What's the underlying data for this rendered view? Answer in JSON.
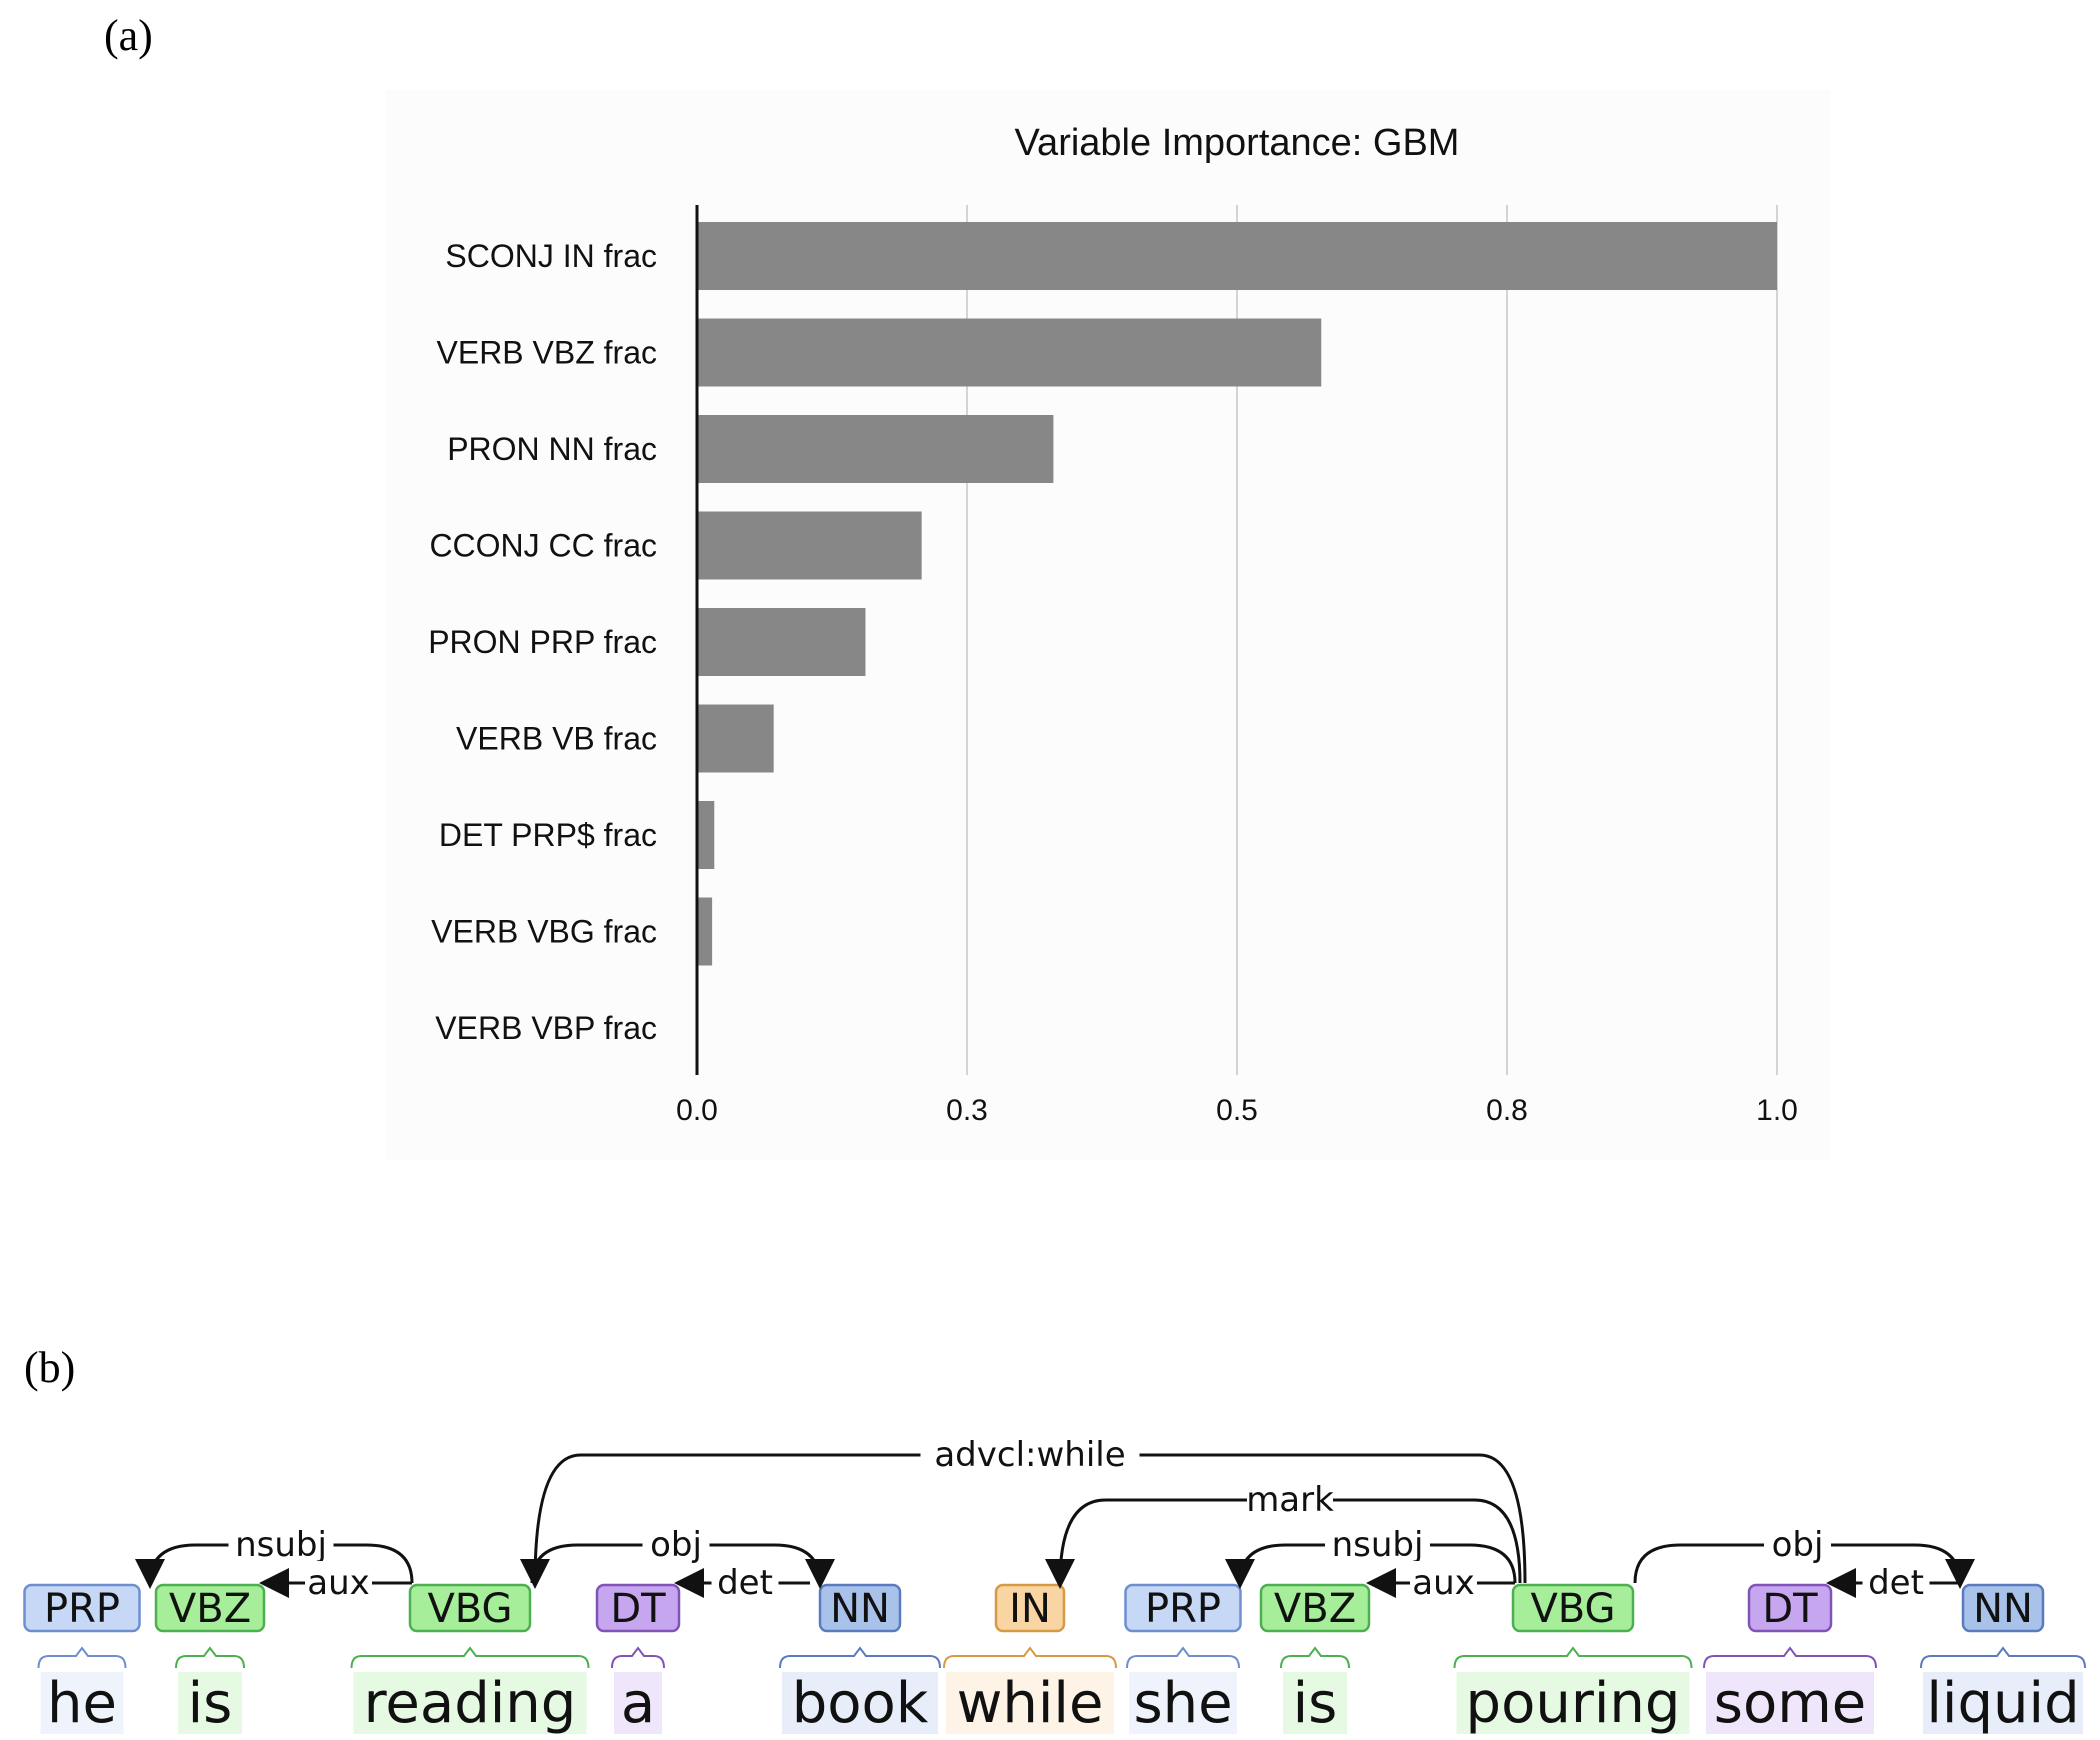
{
  "panels": {
    "a": "(a)",
    "b": "(b)"
  },
  "chart_data": {
    "type": "bar",
    "orientation": "horizontal",
    "title": "Variable Importance: GBM",
    "categories": [
      "SCONJ IN frac",
      "VERB VBZ frac",
      "PRON NN frac",
      "CCONJ CC frac",
      "PRON PRP frac",
      "VERB VB frac",
      "DET PRP$ frac",
      "VERB VBG frac",
      "VERB VBP frac"
    ],
    "values": [
      1.0,
      0.578,
      0.33,
      0.208,
      0.156,
      0.071,
      0.016,
      0.014,
      0.0
    ],
    "xlim": [
      0,
      1.0
    ],
    "ticks": [
      0,
      0.25,
      0.5,
      0.75,
      1.0
    ],
    "tick_labels": [
      "0.0",
      "0.3",
      "0.5",
      "0.8",
      "1.0"
    ],
    "grid": true,
    "colors": {
      "bar": "#878787",
      "background": "#fcfcfc",
      "grid": "#d4d4d4"
    }
  },
  "dependency": {
    "tokens": [
      {
        "word": "he",
        "tag": "PRP"
      },
      {
        "word": "is",
        "tag": "VBZ"
      },
      {
        "word": "reading",
        "tag": "VBG"
      },
      {
        "word": "a",
        "tag": "DT"
      },
      {
        "word": "book",
        "tag": "NN"
      },
      {
        "word": "while",
        "tag": "IN"
      },
      {
        "word": "she",
        "tag": "PRP"
      },
      {
        "word": "is",
        "tag": "VBZ"
      },
      {
        "word": "pouring",
        "tag": "VBG"
      },
      {
        "word": "some",
        "tag": "DT"
      },
      {
        "word": "liquid",
        "tag": "NN"
      }
    ],
    "arcs": [
      {
        "from": 2,
        "to": 0,
        "label": "nsubj"
      },
      {
        "from": 2,
        "to": 1,
        "label": "aux"
      },
      {
        "from": 4,
        "to": 3,
        "label": "det"
      },
      {
        "from": 2,
        "to": 4,
        "label": "obj"
      },
      {
        "from": 8,
        "to": 2,
        "label": "advcl:while"
      },
      {
        "from": 8,
        "to": 5,
        "label": "mark"
      },
      {
        "from": 8,
        "to": 6,
        "label": "nsubj"
      },
      {
        "from": 8,
        "to": 7,
        "label": "aux"
      },
      {
        "from": 10,
        "to": 9,
        "label": "det"
      },
      {
        "from": 8,
        "to": 10,
        "label": "obj"
      }
    ],
    "tag_colors": {
      "PRP": {
        "fill": "#c6d8f5",
        "stroke": "#6d8fd0"
      },
      "VBZ": {
        "fill": "#a6ee9a",
        "stroke": "#4caf50"
      },
      "VBG": {
        "fill": "#a6ee9a",
        "stroke": "#4caf50"
      },
      "DT": {
        "fill": "#c7a6f0",
        "stroke": "#8153b8"
      },
      "NN": {
        "fill": "#a9c2ea",
        "stroke": "#5b7bbf"
      },
      "IN": {
        "fill": "#f9d5a4",
        "stroke": "#d69a45"
      }
    }
  }
}
